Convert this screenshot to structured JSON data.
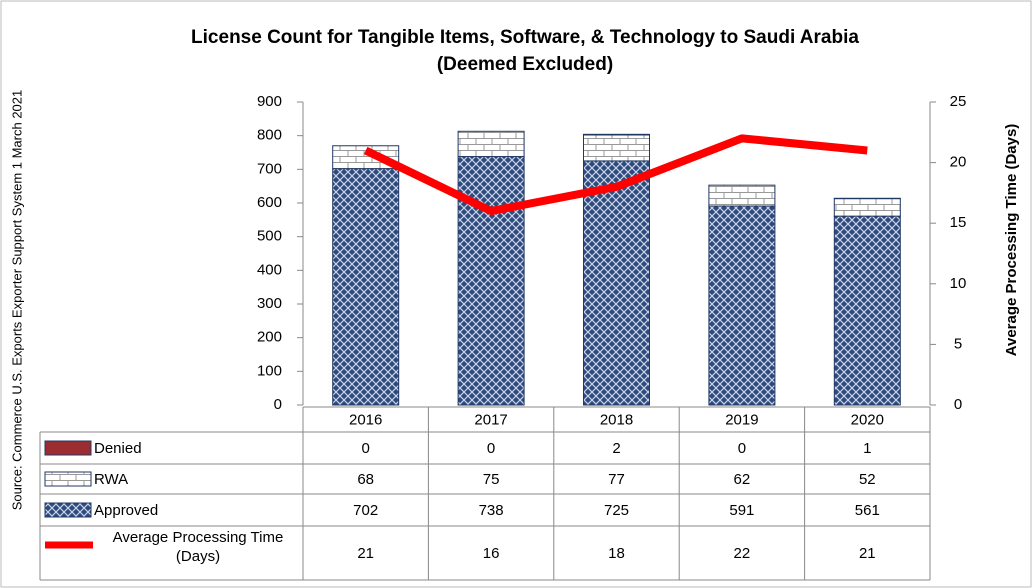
{
  "chart_data": {
    "type": "bar",
    "title": "License Count for Tangible Items, Software, & Technology to Saudi Arabia",
    "subtitle": "(Deemed Excluded)",
    "source": "Source: Commerce U.S. Exports Exporter Support System 1 March 2021",
    "y2_label": "Average Processing Time (Days)",
    "categories": [
      "2016",
      "2017",
      "2018",
      "2019",
      "2020"
    ],
    "ylim": [
      0,
      900
    ],
    "yticks": [
      0,
      100,
      200,
      300,
      400,
      500,
      600,
      700,
      800,
      900
    ],
    "y2lim": [
      0,
      25
    ],
    "y2ticks": [
      0,
      5,
      10,
      15,
      20,
      25
    ],
    "stacked": true,
    "series": [
      {
        "name": "Denied",
        "color": "#9b2d30",
        "values": [
          0,
          0,
          2,
          0,
          1
        ]
      },
      {
        "name": "RWA",
        "color": "#ffffff",
        "values": [
          68,
          75,
          77,
          62,
          52
        ]
      },
      {
        "name": "Approved",
        "color": "#2e4a7d",
        "values": [
          702,
          738,
          725,
          591,
          561
        ]
      },
      {
        "name": "Average Processing Time (Days)",
        "type": "line",
        "axis": "y2",
        "color": "#ff0000",
        "values": [
          21,
          16,
          18,
          22,
          21
        ]
      }
    ]
  }
}
